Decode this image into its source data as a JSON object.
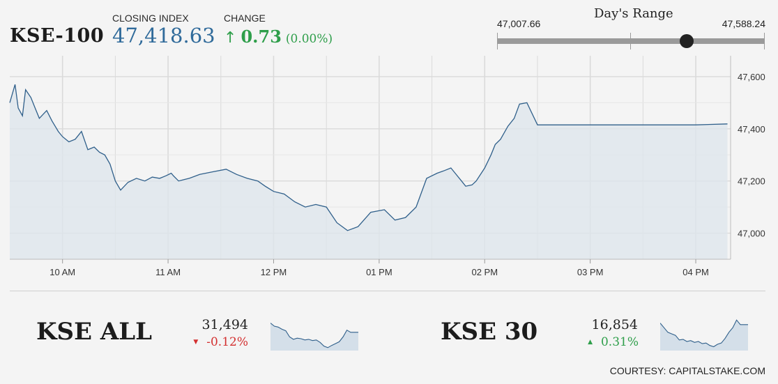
{
  "header": {
    "index_name": "KSE-100",
    "closing_label": "CLOSING INDEX",
    "closing_value": "47,418.63",
    "change_label": "CHANGE",
    "change_arrow": "↑",
    "change_value": "0.73",
    "change_pct": "(0.00%)",
    "colors": {
      "value": "#2f6a9a",
      "up": "#2e9e4a",
      "down": "#d33030"
    }
  },
  "days_range": {
    "title": "Day's Range",
    "low": "47,007.66",
    "high": "47,588.24",
    "current_position": 0.7,
    "indicator_icon": "range-marker-dot"
  },
  "chart_data": {
    "type": "area",
    "x_labels": [
      "10 AM",
      "11 AM",
      "12 PM",
      "01 PM",
      "02 PM",
      "03 PM",
      "04 PM"
    ],
    "y_ticks": [
      47000,
      47200,
      47400,
      47600
    ],
    "y_tick_labels": [
      "47,000",
      "47,200",
      "47,400",
      "47,600"
    ],
    "ylim": [
      46900,
      47680
    ],
    "x_range_hours": [
      9.5,
      16.33
    ],
    "grid": true,
    "line_color": "#2f5f8a",
    "fill_color": "#dde5ec",
    "series": [
      {
        "x": [
          9.5,
          9.55,
          9.58,
          9.62,
          9.65,
          9.7,
          9.74,
          9.78,
          9.85,
          9.9,
          9.93,
          9.96,
          10.0,
          10.06,
          10.12,
          10.18,
          10.24,
          10.3,
          10.35,
          10.4,
          10.45,
          10.5,
          10.55,
          10.62,
          10.7,
          10.78,
          10.85,
          10.92,
          10.98,
          11.03,
          11.05,
          11.1,
          11.15,
          11.2,
          11.3,
          11.42,
          11.55,
          11.65,
          11.75,
          11.85,
          11.92,
          12.0,
          12.1,
          12.2,
          12.3,
          12.4,
          12.5,
          12.6,
          12.7,
          12.8,
          12.92,
          13.05,
          13.15,
          13.25,
          13.35,
          13.45,
          13.55,
          13.62,
          13.68,
          13.72,
          13.78,
          13.82,
          13.88,
          13.92,
          14.0,
          14.06,
          14.1,
          14.15,
          14.22,
          14.28,
          14.33,
          14.4,
          14.5,
          14.58,
          14.67,
          14.75,
          14.82,
          14.87,
          14.93,
          15.0,
          15.06,
          15.12,
          15.18,
          15.25,
          15.3,
          15.35,
          15.4,
          15.45,
          15.5,
          16.0,
          16.3
        ],
        "y": [
          47500,
          47570,
          47480,
          47450,
          47550,
          47520,
          47480,
          47440,
          47470,
          47430,
          47410,
          47390,
          47370,
          47350,
          47360,
          47390,
          47320,
          47330,
          47310,
          47300,
          47265,
          47200,
          47165,
          47195,
          47210,
          47200,
          47215,
          47210,
          47220,
          47230,
          47220,
          47200,
          47205,
          47210,
          47225,
          47235,
          47245,
          47225,
          47210,
          47200,
          47180,
          47160,
          47150,
          47120,
          47100,
          47110,
          47100,
          47040,
          47010,
          47025,
          47080,
          47090,
          47050,
          47060,
          47100,
          47210,
          47230,
          47240,
          47250,
          47230,
          47200,
          47180,
          47185,
          47200,
          47250,
          47300,
          47340,
          47360,
          47410,
          47440,
          47495,
          47500,
          47415,
          47415,
          47415,
          47415,
          47415,
          47415,
          47415,
          47415,
          47415,
          47415,
          47415,
          47415,
          47415,
          47415,
          47415,
          47415,
          47415,
          47415,
          47418.63
        ]
      }
    ]
  },
  "sub_indices": [
    {
      "name": "KSE ALL",
      "value": "31,494",
      "change": "-0.12%",
      "direction": "down",
      "direction_icon": "triangle-down-icon",
      "sparkline": [
        0.85,
        0.75,
        0.72,
        0.65,
        0.6,
        0.4,
        0.32,
        0.36,
        0.34,
        0.3,
        0.32,
        0.28,
        0.3,
        0.22,
        0.1,
        0.05,
        0.12,
        0.18,
        0.24,
        0.4,
        0.62,
        0.55,
        0.55,
        0.55
      ]
    },
    {
      "name": "KSE 30",
      "value": "16,854",
      "change": "0.31%",
      "direction": "up",
      "direction_icon": "triangle-up-icon",
      "sparkline": [
        0.85,
        0.7,
        0.55,
        0.5,
        0.45,
        0.3,
        0.32,
        0.25,
        0.28,
        0.22,
        0.25,
        0.18,
        0.2,
        0.12,
        0.08,
        0.16,
        0.2,
        0.35,
        0.55,
        0.7,
        0.95,
        0.8,
        0.8,
        0.8
      ]
    }
  ],
  "footer": {
    "courtesy": "COURTESY: CAPITALSTAKE.COM"
  }
}
